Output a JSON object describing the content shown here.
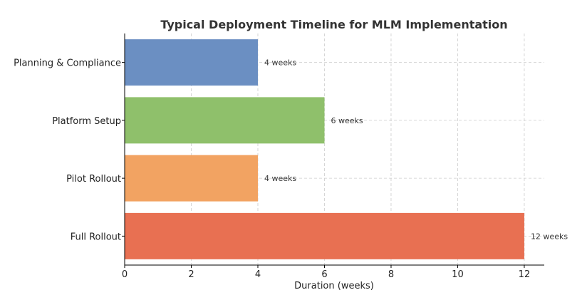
{
  "chart_data": {
    "type": "bar",
    "orientation": "horizontal",
    "title": "Typical Deployment Timeline for MLM Implementation",
    "xlabel": "Duration (weeks)",
    "ylabel": "",
    "categories": [
      "Planning & Compliance",
      "Platform Setup",
      "Pilot Rollout",
      "Full Rollout"
    ],
    "values": [
      4,
      6,
      4,
      12
    ],
    "data_labels": [
      "4 weeks",
      "6 weeks",
      "4 weeks",
      "12 weeks"
    ],
    "colors": [
      "#6b8fc2",
      "#8fc06b",
      "#f2a362",
      "#e87052"
    ],
    "xlim": [
      0,
      12.6
    ],
    "xticks": [
      0,
      2,
      4,
      6,
      8,
      10,
      12
    ],
    "grid": true
  }
}
